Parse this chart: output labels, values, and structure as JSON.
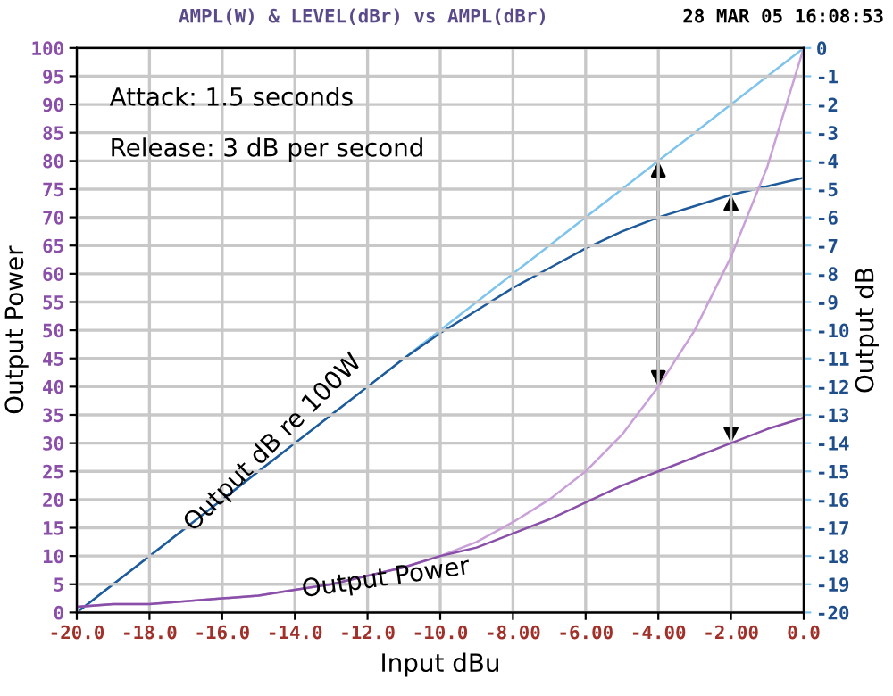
{
  "chart_data": {
    "type": "line",
    "title": "AMPL(W) & LEVEL(dBr) vs AMPL(dBr)",
    "xlabel": "Input dBu",
    "ylabel": "Output Power",
    "y2label": "Output dB",
    "x": [
      -20,
      -19,
      -18,
      -17,
      -16,
      -15,
      -14,
      -13,
      -12,
      -11,
      -10,
      -9,
      -8,
      -7,
      -6,
      -5,
      -4,
      -3,
      -2,
      -1,
      0
    ],
    "series": [
      {
        "color": "#7fc4ec",
        "axis": "y2",
        "values": [
          -20,
          -19,
          -18,
          -17,
          -16,
          -15,
          -14,
          -13,
          -12,
          -11,
          -10,
          -9,
          -8,
          -7,
          -6,
          -5,
          -4,
          -3,
          -2,
          -1,
          0
        ]
      },
      {
        "color": "#1f5a9a",
        "axis": "y2",
        "values": [
          -20,
          -19,
          -18,
          -17,
          -16,
          -15,
          -14,
          -13,
          -12,
          -11,
          -10.1,
          -9.3,
          -8.5,
          -7.8,
          -7.1,
          -6.5,
          -6,
          -5.6,
          -5.2,
          -4.9,
          -4.6
        ]
      },
      {
        "color": "#c9a0d8",
        "values": [
          1,
          1.5,
          1.5,
          2,
          2.5,
          3,
          4,
          5,
          6.5,
          8,
          10,
          12.5,
          16,
          20,
          25,
          31.5,
          40,
          50,
          63,
          79,
          100
        ]
      },
      {
        "color": "#8a4fa8",
        "values": [
          1,
          1.5,
          1.5,
          2,
          2.5,
          3,
          4,
          5,
          6.5,
          8,
          10,
          11.5,
          14,
          16.5,
          19.5,
          22.5,
          25,
          27.5,
          30,
          32.5,
          34.5
        ]
      }
    ],
    "xlim": [
      -20,
      0
    ],
    "ylim": [
      0,
      100
    ],
    "y2lim": [
      -20,
      0
    ],
    "xticks": [
      {
        "value": -20,
        "label": "-20.0"
      },
      {
        "value": -18,
        "label": "-18.0"
      },
      {
        "value": -16,
        "label": "-16.0"
      },
      {
        "value": -14,
        "label": "-14.0"
      },
      {
        "value": -12,
        "label": "-12.0"
      },
      {
        "value": -10,
        "label": "-10.0"
      },
      {
        "value": -8,
        "label": "-8.00"
      },
      {
        "value": -6,
        "label": "-6.00"
      },
      {
        "value": -4,
        "label": "-4.00"
      },
      {
        "value": -2,
        "label": "-2.00"
      },
      {
        "value": 0,
        "label": "0.0"
      }
    ],
    "yticks": [
      0,
      5,
      10,
      15,
      20,
      25,
      30,
      35,
      40,
      45,
      50,
      55,
      60,
      65,
      70,
      75,
      80,
      85,
      90,
      95,
      100
    ],
    "y2ticks": [
      0,
      -1,
      -2,
      -3,
      -4,
      -5,
      -6,
      -7,
      -8,
      -9,
      -10,
      -11,
      -12,
      -13,
      -14,
      -15,
      -16,
      -17,
      -18,
      -19,
      -20
    ],
    "grid": true,
    "annotations": [
      "28 MAR 05 16:08:53",
      "Attack: 1.5 seconds",
      "Release: 3 dB per second",
      "Output dB re 100W",
      {
        "text": "Output Power",
        "x": -11.5,
        "y": 6
      }
    ]
  }
}
